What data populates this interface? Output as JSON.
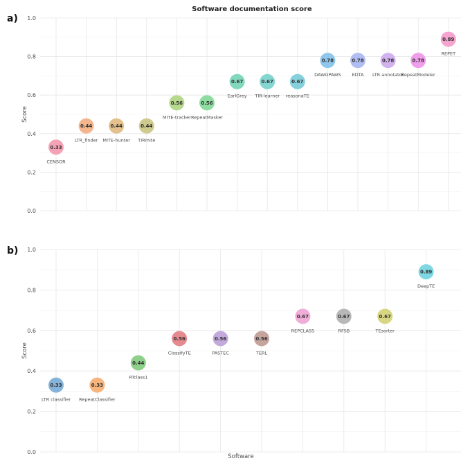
{
  "chart_data": [
    {
      "type": "scatter",
      "panel": "a)",
      "title": "Software documentation score",
      "ylabel": "Score",
      "xlabel": "",
      "ylim": [
        0,
        1
      ],
      "yticks": [
        "0.0",
        "0.2",
        "0.4",
        "0.6",
        "0.8",
        "1.0"
      ],
      "points": [
        {
          "name": "CENSOR",
          "value": 0.33,
          "label": "0.33",
          "color": "#f4a3b6"
        },
        {
          "name": "LTR_finder",
          "value": 0.44,
          "label": "0.44",
          "color": "#f5b58d"
        },
        {
          "name": "MITE-hunter",
          "value": 0.44,
          "label": "0.44",
          "color": "#e3c08c"
        },
        {
          "name": "TIRmite",
          "value": 0.44,
          "label": "0.44",
          "color": "#cfca8e"
        },
        {
          "name": "MITE-tracker",
          "value": 0.56,
          "label": "0.56",
          "color": "#b6d98e"
        },
        {
          "name": "RepeatMasker",
          "value": 0.56,
          "label": "0.56",
          "color": "#8fdca0"
        },
        {
          "name": "EarlGrey",
          "value": 0.67,
          "label": "0.67",
          "color": "#82d8bd"
        },
        {
          "name": "TIR-learner",
          "value": 0.67,
          "label": "0.67",
          "color": "#84d6d1"
        },
        {
          "name": "reasonaTE",
          "value": 0.67,
          "label": "0.67",
          "color": "#86d0dc"
        },
        {
          "name": "DAWGPAWS",
          "value": 0.78,
          "label": "0.78",
          "color": "#8fc6ec"
        },
        {
          "name": "EDTA",
          "value": 0.78,
          "label": "0.78",
          "color": "#b0bdf2"
        },
        {
          "name": "LTR annotator",
          "value": 0.78,
          "label": "0.78",
          "color": "#d1b2ef"
        },
        {
          "name": "RepeatModeler",
          "value": 0.78,
          "label": "0.78",
          "color": "#ef9eec"
        },
        {
          "name": "REPET",
          "value": 0.89,
          "label": "0.89",
          "color": "#f5a3cf"
        }
      ]
    },
    {
      "type": "scatter",
      "panel": "b)",
      "title": "",
      "ylabel": "Score",
      "xlabel": "Software",
      "ylim": [
        0,
        1
      ],
      "yticks": [
        "0.0",
        "0.2",
        "0.4",
        "0.6",
        "0.8",
        "1.0"
      ],
      "points": [
        {
          "name": "LTR classifier",
          "value": 0.33,
          "label": "0.33",
          "color": "#86b3d9"
        },
        {
          "name": "RepeatClassifier",
          "value": 0.33,
          "label": "0.33",
          "color": "#f7b57e"
        },
        {
          "name": "RTclass1",
          "value": 0.44,
          "label": "0.44",
          "color": "#8ecf8a"
        },
        {
          "name": "ClassifyTE",
          "value": 0.56,
          "label": "0.56",
          "color": "#e58b8f"
        },
        {
          "name": "PASTEC",
          "value": 0.56,
          "label": "0.56",
          "color": "#c3a9dc"
        },
        {
          "name": "TERL",
          "value": 0.56,
          "label": "0.56",
          "color": "#c5a49e"
        },
        {
          "name": "REPCLASS",
          "value": 0.67,
          "label": "0.67",
          "color": "#efadd8"
        },
        {
          "name": "RFSB",
          "value": 0.67,
          "label": "0.67",
          "color": "#b8b8b8"
        },
        {
          "name": "TEsorter",
          "value": 0.67,
          "label": "0.67",
          "color": "#d7d683"
        },
        {
          "name": "DeepTE",
          "value": 0.89,
          "label": "0.89",
          "color": "#7fd7e2"
        }
      ]
    }
  ]
}
